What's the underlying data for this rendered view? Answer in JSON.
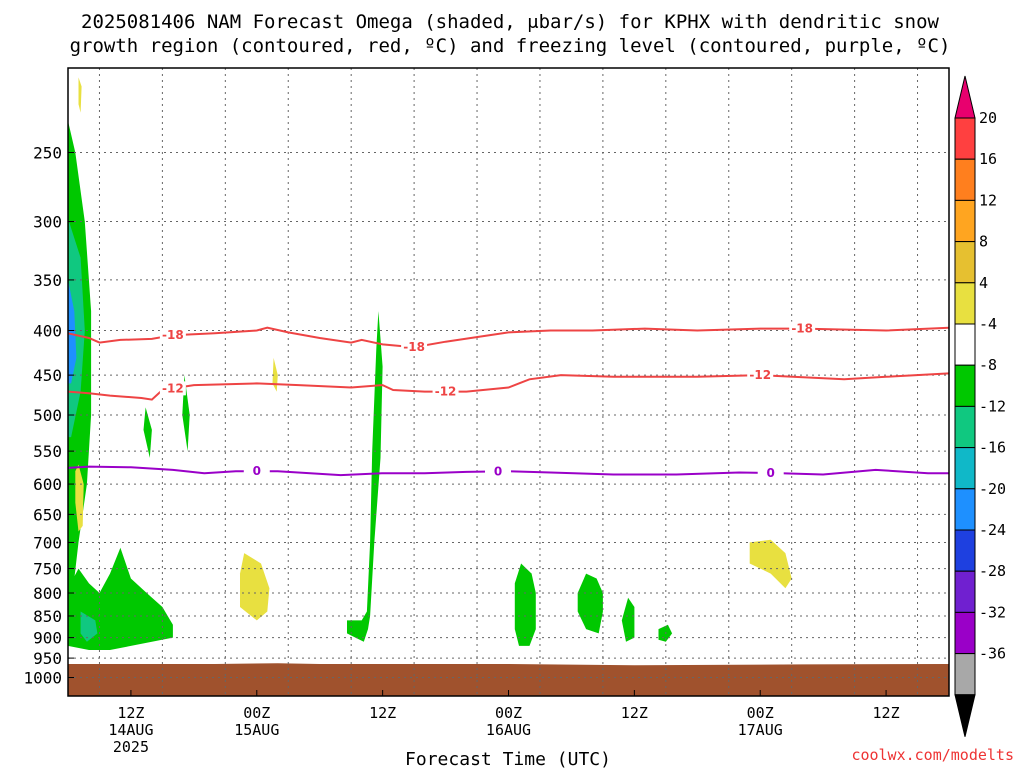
{
  "title_line1": "2025081406 NAM Forecast Omega (shaded, μbar/s) for KPHX with dendritic snow",
  "title_line2": "growth region (contoured, red, ºC) and freezing level (contoured, purple, ºC)",
  "credit": "coolwx.com/modelts",
  "chart_data": {
    "type": "heatmap",
    "title": "2025081406 NAM Forecast Omega (shaded, μbar/s) for KPHX with dendritic snow growth region (contoured, red, ºC) and freezing level (contoured, purple, ºC)",
    "xlabel": "Forecast Time (UTC)",
    "ylabel": "",
    "x_range_hours": [
      0,
      84
    ],
    "y_log_pressure_hPa": [
      1050,
      200
    ],
    "grid": true,
    "y_ticks": [
      250,
      300,
      350,
      400,
      450,
      500,
      550,
      600,
      650,
      700,
      750,
      800,
      850,
      900,
      950,
      1000
    ],
    "x_ticks": [
      {
        "hour": 6,
        "line1": "12Z",
        "line2": "14AUG",
        "line3": "2025"
      },
      {
        "hour": 18,
        "line1": "00Z",
        "line2": "15AUG",
        "line3": ""
      },
      {
        "hour": 30,
        "line1": "12Z",
        "line2": "",
        "line3": ""
      },
      {
        "hour": 42,
        "line1": "00Z",
        "line2": "16AUG",
        "line3": ""
      },
      {
        "hour": 54,
        "line1": "12Z",
        "line2": "",
        "line3": ""
      },
      {
        "hour": 66,
        "line1": "00Z",
        "line2": "17AUG",
        "line3": ""
      },
      {
        "hour": 78,
        "line1": "12Z",
        "line2": "",
        "line3": ""
      }
    ],
    "colorbar": {
      "labels": [
        "20",
        "16",
        "12",
        "8",
        "4",
        "-4",
        "-8",
        "-12",
        "-16",
        "-20",
        "-24",
        "-28",
        "-32",
        "-36"
      ],
      "colors": [
        "#e8006e",
        "#ff4040",
        "#ff7f1e",
        "#ffa520",
        "#e6c030",
        "#e8e040",
        "#ffffff",
        "#00c800",
        "#10c880",
        "#10b8c8",
        "#1e90ff",
        "#1e40e0",
        "#7020d0",
        "#9a00c8",
        "#a8a8a8",
        "#000000"
      ]
    },
    "contours": [
      {
        "name": "-18",
        "color": "#ee4444",
        "label_hours": [
          10,
          33,
          70
        ],
        "points": [
          [
            0,
            403
          ],
          [
            2,
            408
          ],
          [
            3,
            413
          ],
          [
            5,
            410
          ],
          [
            8,
            409
          ],
          [
            10,
            405
          ],
          [
            14,
            403
          ],
          [
            18,
            400
          ],
          [
            19,
            397
          ],
          [
            21,
            402
          ],
          [
            24,
            408
          ],
          [
            27,
            413
          ],
          [
            28,
            410
          ],
          [
            30,
            415
          ],
          [
            33,
            418
          ],
          [
            36,
            412
          ],
          [
            42,
            402
          ],
          [
            46,
            400
          ],
          [
            50,
            400
          ],
          [
            55,
            398
          ],
          [
            60,
            400
          ],
          [
            66,
            398
          ],
          [
            70,
            398
          ],
          [
            78,
            400
          ],
          [
            84,
            397
          ]
        ]
      },
      {
        "name": "-12",
        "color": "#ee4444",
        "label_hours": [
          10,
          36,
          66
        ],
        "points": [
          [
            0,
            470
          ],
          [
            2,
            472
          ],
          [
            4,
            475
          ],
          [
            7,
            478
          ],
          [
            8,
            480
          ],
          [
            9,
            468
          ],
          [
            12,
            462
          ],
          [
            18,
            460
          ],
          [
            22,
            462
          ],
          [
            27,
            465
          ],
          [
            30,
            462
          ],
          [
            31,
            468
          ],
          [
            34,
            470
          ],
          [
            38,
            470
          ],
          [
            42,
            465
          ],
          [
            44,
            455
          ],
          [
            47,
            450
          ],
          [
            52,
            452
          ],
          [
            60,
            452
          ],
          [
            66,
            450
          ],
          [
            74,
            455
          ],
          [
            78,
            452
          ],
          [
            84,
            448
          ]
        ]
      },
      {
        "name": "0",
        "color": "#9a00c8",
        "label_hours": [
          18,
          41,
          67
        ],
        "points": [
          [
            0,
            575
          ],
          [
            2,
            573
          ],
          [
            6,
            574
          ],
          [
            10,
            578
          ],
          [
            13,
            583
          ],
          [
            16,
            580
          ],
          [
            20,
            580
          ],
          [
            26,
            586
          ],
          [
            30,
            583
          ],
          [
            34,
            583
          ],
          [
            38,
            581
          ],
          [
            42,
            580
          ],
          [
            46,
            582
          ],
          [
            52,
            585
          ],
          [
            58,
            585
          ],
          [
            64,
            582
          ],
          [
            68,
            583
          ],
          [
            72,
            585
          ],
          [
            77,
            578
          ],
          [
            82,
            583
          ],
          [
            84,
            583
          ]
        ]
      }
    ],
    "omega_regions": [
      {
        "color": "#00c800",
        "hours_pressures": [
          [
            0,
            230
          ],
          [
            0.7,
            250
          ],
          [
            1.6,
            300
          ],
          [
            2.2,
            380
          ],
          [
            2.2,
            500
          ],
          [
            1.8,
            600
          ],
          [
            1,
            700
          ],
          [
            0.5,
            790
          ],
          [
            0,
            790
          ]
        ]
      },
      {
        "color": "#10c880",
        "hours_pressures": [
          [
            0.1,
            300
          ],
          [
            1.2,
            330
          ],
          [
            1.6,
            400
          ],
          [
            1.2,
            470
          ],
          [
            0.3,
            530
          ],
          [
            0,
            530
          ]
        ]
      },
      {
        "color": "#1e90ff",
        "hours_pressures": [
          [
            0,
            350
          ],
          [
            0.6,
            380
          ],
          [
            0.8,
            430
          ],
          [
            0.3,
            460
          ],
          [
            0,
            460
          ]
        ]
      },
      {
        "color": "#00c800",
        "hours_pressures": [
          [
            0,
            790
          ],
          [
            1,
            750
          ],
          [
            2,
            780
          ],
          [
            3,
            800
          ],
          [
            4,
            760
          ],
          [
            5,
            710
          ],
          [
            6,
            770
          ],
          [
            7.5,
            800
          ],
          [
            9,
            830
          ],
          [
            10,
            870
          ],
          [
            10,
            900
          ],
          [
            8,
            910
          ],
          [
            6,
            920
          ],
          [
            4,
            930
          ],
          [
            2,
            930
          ],
          [
            0,
            920
          ]
        ]
      },
      {
        "color": "#10c880",
        "hours_pressures": [
          [
            1.2,
            840
          ],
          [
            2.6,
            860
          ],
          [
            2.8,
            890
          ],
          [
            1.8,
            910
          ],
          [
            1.2,
            890
          ]
        ]
      },
      {
        "color": "#00c800",
        "hours_pressures": [
          [
            7.4,
            490
          ],
          [
            8,
            520
          ],
          [
            7.8,
            560
          ],
          [
            7.2,
            520
          ]
        ]
      },
      {
        "color": "#00c800",
        "hours_pressures": [
          [
            11.1,
            450
          ],
          [
            11.6,
            500
          ],
          [
            11.4,
            550
          ],
          [
            10.9,
            500
          ]
        ]
      },
      {
        "color": "#00c800",
        "hours_pressures": [
          [
            27.2,
            860
          ],
          [
            28,
            860
          ],
          [
            28.5,
            840
          ],
          [
            28.8,
            700
          ],
          [
            29,
            550
          ],
          [
            29.4,
            420
          ],
          [
            29.6,
            380
          ],
          [
            30,
            440
          ],
          [
            29.8,
            560
          ],
          [
            29.2,
            700
          ],
          [
            28.8,
            850
          ],
          [
            28.6,
            880
          ],
          [
            28.2,
            910
          ],
          [
            27.4,
            900
          ],
          [
            26.6,
            890
          ],
          [
            26.6,
            860
          ]
        ]
      },
      {
        "color": "#00c800",
        "hours_pressures": [
          [
            43.2,
            740
          ],
          [
            44.2,
            760
          ],
          [
            44.6,
            800
          ],
          [
            44.6,
            880
          ],
          [
            44,
            920
          ],
          [
            43,
            920
          ],
          [
            42.6,
            880
          ],
          [
            42.6,
            780
          ]
        ]
      },
      {
        "color": "#00c800",
        "hours_pressures": [
          [
            49.4,
            760
          ],
          [
            50.4,
            770
          ],
          [
            51,
            800
          ],
          [
            51,
            840
          ],
          [
            50.6,
            890
          ],
          [
            49.4,
            880
          ],
          [
            48.6,
            840
          ],
          [
            48.6,
            800
          ]
        ]
      },
      {
        "color": "#00c800",
        "hours_pressures": [
          [
            53.4,
            810
          ],
          [
            54,
            830
          ],
          [
            54,
            900
          ],
          [
            53.2,
            910
          ],
          [
            52.8,
            860
          ]
        ]
      },
      {
        "color": "#00c800",
        "hours_pressures": [
          [
            56.3,
            880
          ],
          [
            57.2,
            870
          ],
          [
            57.6,
            890
          ],
          [
            57,
            910
          ],
          [
            56.3,
            905
          ]
        ]
      },
      {
        "color": "#e8e040",
        "hours_pressures": [
          [
            1,
            570
          ],
          [
            1.5,
            600
          ],
          [
            1.4,
            670
          ],
          [
            1,
            680
          ],
          [
            0.7,
            630
          ],
          [
            0.7,
            580
          ]
        ]
      },
      {
        "color": "#e8e040",
        "hours_pressures": [
          [
            16.8,
            720
          ],
          [
            18.4,
            740
          ],
          [
            19.2,
            790
          ],
          [
            19,
            840
          ],
          [
            18,
            860
          ],
          [
            16.4,
            830
          ],
          [
            16.4,
            760
          ]
        ]
      },
      {
        "color": "#e8e040",
        "hours_pressures": [
          [
            19.6,
            430
          ],
          [
            20,
            450
          ],
          [
            19.9,
            470
          ],
          [
            19.5,
            460
          ]
        ]
      },
      {
        "color": "#e8e040",
        "hours_pressures": [
          [
            65,
            700
          ],
          [
            67,
            695
          ],
          [
            68.4,
            720
          ],
          [
            69,
            770
          ],
          [
            68.4,
            790
          ],
          [
            67,
            760
          ],
          [
            65,
            740
          ]
        ]
      },
      {
        "color": "#e8e040",
        "hours_pressures": [
          [
            1,
            205
          ],
          [
            1.3,
            210
          ],
          [
            1.2,
            225
          ],
          [
            1,
            220
          ]
        ]
      }
    ],
    "ground": {
      "color": "#a0522d",
      "pressures_hPa": [
        [
          0,
          965
        ],
        [
          14,
          965
        ],
        [
          20,
          963
        ],
        [
          24,
          965
        ],
        [
          42,
          965
        ],
        [
          54,
          968
        ],
        [
          70,
          966
        ],
        [
          84,
          965
        ]
      ]
    }
  }
}
